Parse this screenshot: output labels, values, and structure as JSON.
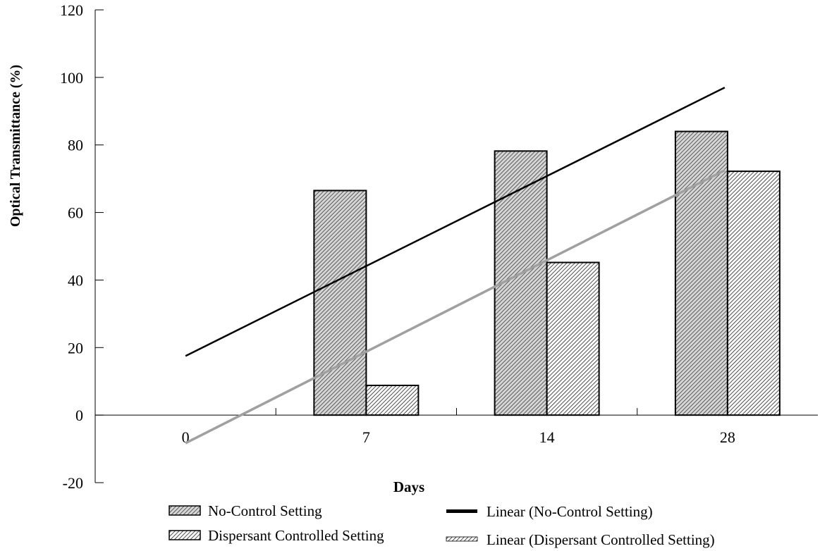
{
  "chart_data": {
    "type": "bar",
    "ylabel": "Optical Transmittance (%)",
    "xlabel": "Days",
    "categories": [
      "0",
      "7",
      "14",
      "28"
    ],
    "ylim": [
      -20,
      120
    ],
    "yticks": [
      "-20",
      "0",
      "20",
      "40",
      "60",
      "80",
      "100",
      "120"
    ],
    "grid": false,
    "legend_position": "bottom",
    "series": [
      {
        "name": "No-Control Setting",
        "values": [
          0,
          66.5,
          78.2,
          84
        ],
        "color": "#b0b0b0",
        "pattern": "dense-hatch"
      },
      {
        "name": "Dispersant Controlled Setting",
        "values": [
          0,
          8.8,
          45.2,
          72.2
        ],
        "color": "#ffffff",
        "pattern": "diagonal-hatch"
      }
    ],
    "trendlines": [
      {
        "name": "Linear (No-Control Setting)",
        "y_start": 17.5,
        "y_end": 97,
        "color": "#000000"
      },
      {
        "name": "Linear (Dispersant Controlled Setting)",
        "y_start": -8.3,
        "y_end": 72.5,
        "color": "#a0a0a0"
      }
    ]
  }
}
